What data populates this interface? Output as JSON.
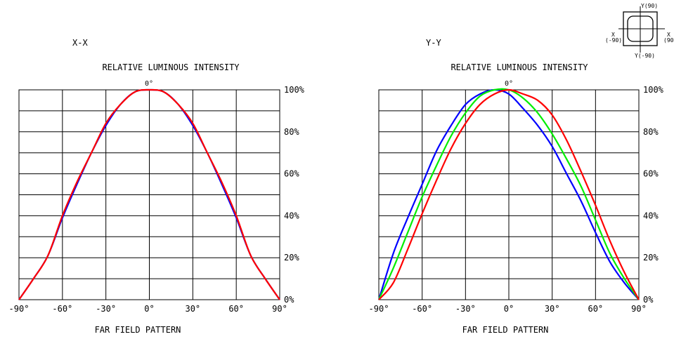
{
  "legend_icon": {
    "top": "Y(90)",
    "bottom": "Y(-90)",
    "left_top": "X",
    "left_bottom": "(-90)",
    "right_top": "X",
    "right_bottom": "(90)"
  },
  "chart_data": [
    {
      "type": "line",
      "panel_label": "X-X",
      "title": "RELATIVE LUMINOUS INTENSITY",
      "xlabel": "FAR FIELD PATTERN",
      "ylabel": "",
      "xlim": [
        -90,
        90
      ],
      "ylim": [
        0,
        100
      ],
      "grid": true,
      "x_ticks": [
        "-90°",
        "-60°",
        "-30°",
        "0°",
        "30°",
        "60°",
        "90°"
      ],
      "y_ticks": [
        "0%",
        "20%",
        "40%",
        "60%",
        "80%",
        "100%"
      ],
      "top_center_label": "0°",
      "x": [
        -90,
        -80,
        -70,
        -60,
        -50,
        -40,
        -30,
        -20,
        -10,
        0,
        10,
        20,
        30,
        40,
        50,
        60,
        70,
        80,
        90
      ],
      "series": [
        {
          "color": "#0000ff",
          "values": [
            0,
            10,
            21,
            39,
            55,
            70,
            83,
            93,
            99,
            100,
            99,
            93,
            83,
            70,
            55,
            39,
            21,
            10,
            0
          ]
        },
        {
          "color": "#ff0000",
          "values": [
            0,
            10,
            21,
            40,
            56,
            70,
            84,
            93,
            99,
            100,
            99,
            93,
            84,
            70,
            56,
            40,
            21,
            10,
            0
          ]
        }
      ]
    },
    {
      "type": "line",
      "panel_label": "Y-Y",
      "title": "RELATIVE LUMINOUS INTENSITY",
      "xlabel": "FAR FIELD PATTERN",
      "ylabel": "",
      "xlim": [
        -90,
        90
      ],
      "ylim": [
        0,
        100
      ],
      "grid": true,
      "x_ticks": [
        "-90°",
        "-60°",
        "-30°",
        "0°",
        "30°",
        "60°",
        "90°"
      ],
      "y_ticks": [
        "0%",
        "20%",
        "40%",
        "60%",
        "80%",
        "100%"
      ],
      "top_center_label": "0°",
      "x": [
        -90,
        -80,
        -70,
        -60,
        -50,
        -40,
        -30,
        -20,
        -10,
        0,
        10,
        20,
        30,
        40,
        50,
        60,
        70,
        80,
        90
      ],
      "series": [
        {
          "color": "#0000ff",
          "values": [
            0,
            22,
            39,
            55,
            71,
            83,
            93,
            98,
            100,
            98,
            91,
            83,
            73,
            60,
            47,
            32,
            18,
            8,
            0
          ]
        },
        {
          "color": "#00ee00",
          "values": [
            0,
            15,
            32,
            49,
            64,
            78,
            89,
            97,
            100,
            100,
            96,
            89,
            79,
            67,
            54,
            38,
            22,
            10,
            0
          ]
        },
        {
          "color": "#ff0000",
          "values": [
            0,
            8,
            24,
            41,
            57,
            72,
            84,
            93,
            98,
            100,
            98,
            95,
            88,
            76,
            61,
            45,
            28,
            13,
            0
          ]
        }
      ]
    }
  ]
}
